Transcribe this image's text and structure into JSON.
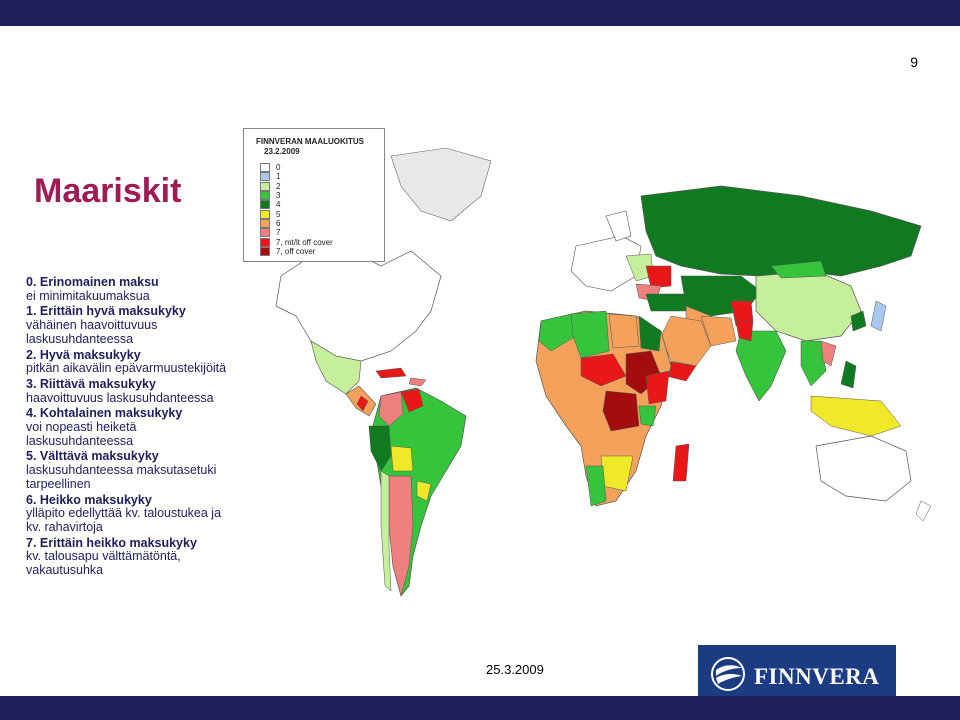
{
  "slide": {
    "page_number": "9",
    "title": "Maariskit",
    "footer_date": "25.3.2009"
  },
  "logo": {
    "text": "FINNVERA"
  },
  "levels": [
    {
      "title": "0. Erinomainen maksu",
      "desc": "ei minimitakuumaksua"
    },
    {
      "title": "1. Erittäin hyvä maksukyky",
      "desc": "vähäinen haavoittuvuus laskusuhdanteessa"
    },
    {
      "title": "2. Hyvä maksukyky",
      "desc": "pitkän aikavälin epävarmuustekijöitä"
    },
    {
      "title": "3. Riittävä maksukyky",
      "desc": "haavoittuvuus laskusuhdanteessa"
    },
    {
      "title": "4. Kohtalainen maksukyky",
      "desc": "voi nopeasti heiketä laskusuhdanteessa"
    },
    {
      "title": "5. Välttävä maksukyky",
      "desc": "laskusuhdanteessa maksutasetuki tarpeellinen"
    },
    {
      "title": "6. Heikko maksukyky",
      "desc": "ylläpito edellyttää kv. taloustukea ja kv. rahavirtoja"
    },
    {
      "title": "7. Erittäin heikko maksukyky",
      "desc": "kv. talousapu välttämätöntä, vakautusuhka"
    }
  ],
  "legend": {
    "title": "FINNVERAN MAALUOKITUS",
    "date": "23.2.2009",
    "items": [
      {
        "label": "0",
        "color": "#ffffff"
      },
      {
        "label": "1",
        "color": "#a9c8ef"
      },
      {
        "label": "2",
        "color": "#c5ef9a"
      },
      {
        "label": "3",
        "color": "#35c43c"
      },
      {
        "label": "4",
        "color": "#0f7a20"
      },
      {
        "label": "5",
        "color": "#f0e92a"
      },
      {
        "label": "6",
        "color": "#f4a15c"
      },
      {
        "label": "7",
        "color": "#f07f7f"
      },
      {
        "label": "7, mt/lt off cover",
        "color": "#e81818"
      },
      {
        "label": "7, off cover",
        "color": "#a30d0d"
      }
    ]
  }
}
